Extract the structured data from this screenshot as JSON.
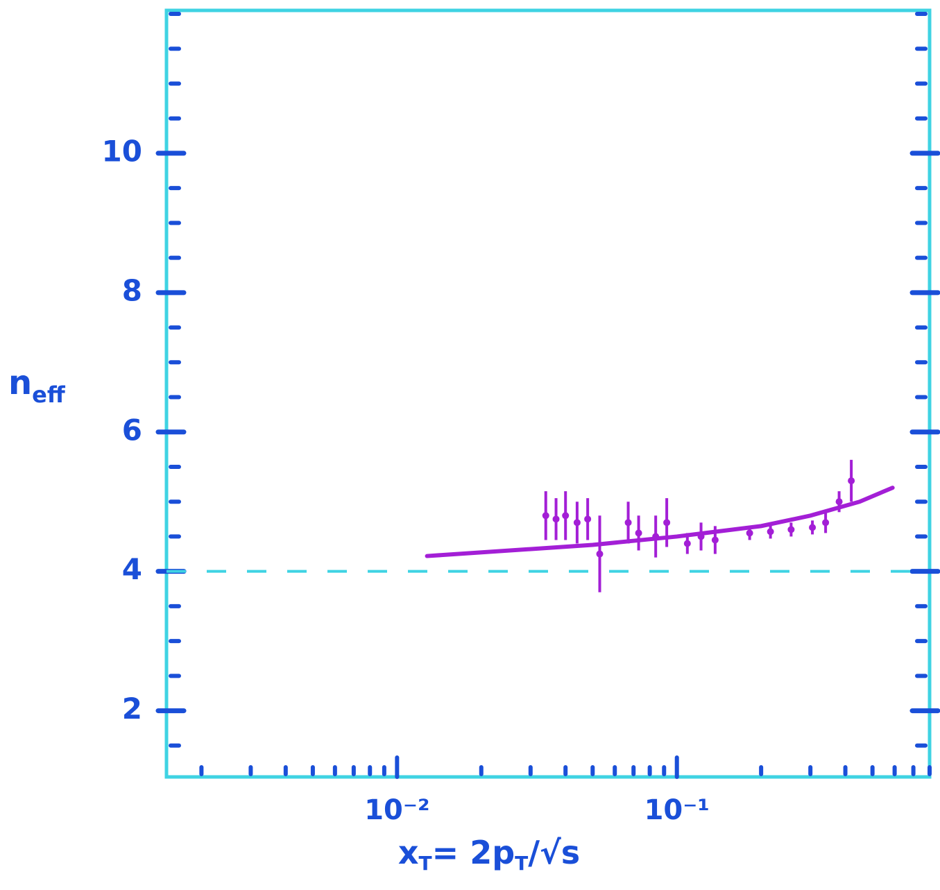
{
  "chart_data": {
    "type": "scatter",
    "xlabel": [
      "x",
      "T",
      "= 2p",
      "T",
      "/√s"
    ],
    "ylabel": [
      "n",
      "eff"
    ],
    "xscale": "log",
    "xlim": [
      0.0015,
      0.8
    ],
    "xticks": [
      {
        "value": 0.01,
        "label": "10⁻²"
      },
      {
        "value": 0.1,
        "label": "10⁻¹"
      }
    ],
    "ylim": [
      1.05,
      12.05
    ],
    "yticks": [
      2,
      4,
      6,
      8,
      10
    ],
    "reference_line": 4,
    "frame_color": "#3fd3e3",
    "tick_color": "#1a4fd8",
    "series": [
      {
        "kind": "errorbar",
        "color": "#a31fd6",
        "x": [
          0.034,
          0.037,
          0.04,
          0.044,
          0.048,
          0.053,
          0.067,
          0.073,
          0.084,
          0.092,
          0.109,
          0.122,
          0.137,
          0.182,
          0.216,
          0.256,
          0.305,
          0.34,
          0.38,
          0.42
        ],
        "values": [
          4.8,
          4.75,
          4.8,
          4.7,
          4.75,
          4.25,
          4.7,
          4.55,
          4.5,
          4.7,
          4.4,
          4.5,
          4.45,
          4.55,
          4.57,
          4.6,
          4.63,
          4.7,
          5.0,
          5.3
        ],
        "errors": [
          0.35,
          0.3,
          0.35,
          0.3,
          0.3,
          0.55,
          0.3,
          0.25,
          0.3,
          0.35,
          0.15,
          0.2,
          0.2,
          0.1,
          0.1,
          0.1,
          0.1,
          0.15,
          0.15,
          0.3
        ]
      },
      {
        "kind": "line",
        "color": "#a31fd6",
        "x": [
          0.0128,
          0.05,
          0.1,
          0.2,
          0.3,
          0.45,
          0.59
        ],
        "values": [
          4.22,
          4.38,
          4.5,
          4.65,
          4.8,
          5.0,
          5.2
        ]
      }
    ]
  }
}
